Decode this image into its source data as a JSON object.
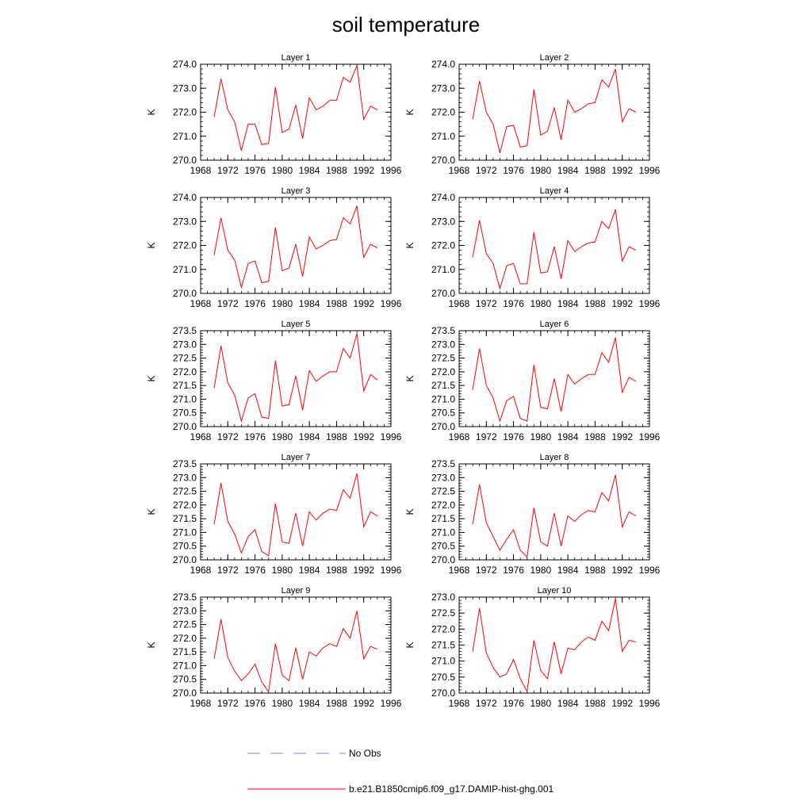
{
  "title": "soil temperature",
  "colors": {
    "model": "#ff0000",
    "obs": "#8080ff",
    "axis": "#000000"
  },
  "legend": {
    "placement": "bottom",
    "entries": [
      {
        "label": "No Obs",
        "style": "dashed",
        "color": "#8080ff"
      },
      {
        "label": "b.e21.B1850cmip6.f09_g17.DAMIP-hist-ghg.001",
        "style": "solid",
        "color": "#ff0000"
      }
    ]
  },
  "chart_data": [
    {
      "type": "line",
      "title": "Layer 1",
      "ylabel": "K",
      "xlabel": "",
      "xlim": [
        1968,
        1996
      ],
      "xticks": [
        "1968",
        "1972",
        "1976",
        "1980",
        "1984",
        "1988",
        "1992",
        "1996"
      ],
      "ylim": [
        270.0,
        274.0
      ],
      "yticks": [
        "270.0",
        "271.0",
        "272.0",
        "273.0",
        "274.0"
      ],
      "x": [
        1970,
        1971,
        1972,
        1973,
        1974,
        1975,
        1976,
        1977,
        1978,
        1979,
        1980,
        1981,
        1982,
        1983,
        1984,
        1985,
        1986,
        1987,
        1988,
        1989,
        1990,
        1991,
        1992,
        1993,
        1994
      ],
      "series": [
        {
          "values": [
            271.8,
            273.4,
            272.1,
            271.6,
            270.4,
            271.5,
            271.5,
            270.65,
            270.7,
            273.05,
            271.15,
            271.3,
            272.3,
            270.9,
            272.6,
            272.1,
            272.25,
            272.5,
            272.5,
            273.45,
            273.25,
            273.95,
            271.7,
            272.25,
            272.1
          ]
        }
      ]
    },
    {
      "type": "line",
      "title": "Layer 2",
      "ylabel": "K",
      "xlabel": "",
      "xlim": [
        1968,
        1996
      ],
      "xticks": [
        "1968",
        "1972",
        "1976",
        "1980",
        "1984",
        "1988",
        "1992",
        "1996"
      ],
      "ylim": [
        270.0,
        274.0
      ],
      "yticks": [
        "270.0",
        "271.0",
        "272.0",
        "273.0",
        "274.0"
      ],
      "x": [
        1970,
        1971,
        1972,
        1973,
        1974,
        1975,
        1976,
        1977,
        1978,
        1979,
        1980,
        1981,
        1982,
        1983,
        1984,
        1985,
        1986,
        1987,
        1988,
        1989,
        1990,
        1991,
        1992,
        1993,
        1994
      ],
      "series": [
        {
          "values": [
            271.7,
            273.3,
            272.0,
            271.5,
            270.3,
            271.4,
            271.45,
            270.55,
            270.6,
            272.95,
            271.05,
            271.2,
            272.2,
            270.85,
            272.5,
            272.0,
            272.15,
            272.35,
            272.4,
            273.35,
            273.05,
            273.8,
            271.6,
            272.15,
            272.0
          ]
        }
      ]
    },
    {
      "type": "line",
      "title": "Layer 3",
      "ylabel": "K",
      "xlabel": "",
      "xlim": [
        1968,
        1996
      ],
      "xticks": [
        "1968",
        "1972",
        "1976",
        "1980",
        "1984",
        "1988",
        "1992",
        "1996"
      ],
      "ylim": [
        270.0,
        274.0
      ],
      "yticks": [
        "270.0",
        "271.0",
        "272.0",
        "273.0",
        "274.0"
      ],
      "x": [
        1970,
        1971,
        1972,
        1973,
        1974,
        1975,
        1976,
        1977,
        1978,
        1979,
        1980,
        1981,
        1982,
        1983,
        1984,
        1985,
        1986,
        1987,
        1988,
        1989,
        1990,
        1991,
        1992,
        1993,
        1994
      ],
      "series": [
        {
          "values": [
            271.6,
            273.15,
            271.8,
            271.4,
            270.25,
            271.25,
            271.35,
            270.45,
            270.5,
            272.75,
            270.95,
            271.05,
            272.05,
            270.7,
            272.35,
            271.85,
            272.0,
            272.2,
            272.25,
            273.15,
            272.9,
            273.65,
            271.5,
            272.05,
            271.9
          ]
        }
      ]
    },
    {
      "type": "line",
      "title": "Layer 4",
      "ylabel": "K",
      "xlabel": "",
      "xlim": [
        1968,
        1996
      ],
      "xticks": [
        "1968",
        "1972",
        "1976",
        "1980",
        "1984",
        "1988",
        "1992",
        "1996"
      ],
      "ylim": [
        270.0,
        274.0
      ],
      "yticks": [
        "270.0",
        "271.0",
        "272.0",
        "273.0",
        "274.0"
      ],
      "x": [
        1970,
        1971,
        1972,
        1973,
        1974,
        1975,
        1976,
        1977,
        1978,
        1979,
        1980,
        1981,
        1982,
        1983,
        1984,
        1985,
        1986,
        1987,
        1988,
        1989,
        1990,
        1991,
        1992,
        1993,
        1994
      ],
      "series": [
        {
          "values": [
            271.5,
            273.05,
            271.65,
            271.25,
            270.2,
            271.15,
            271.25,
            270.4,
            270.4,
            272.55,
            270.85,
            270.9,
            271.95,
            270.6,
            272.2,
            271.75,
            271.95,
            272.1,
            272.15,
            273.0,
            272.7,
            273.5,
            271.35,
            271.95,
            271.8
          ]
        }
      ]
    },
    {
      "type": "line",
      "title": "Layer 5",
      "ylabel": "K",
      "xlabel": "",
      "xlim": [
        1968,
        1996
      ],
      "xticks": [
        "1968",
        "1972",
        "1976",
        "1980",
        "1984",
        "1988",
        "1992",
        "1996"
      ],
      "ylim": [
        270.0,
        273.5
      ],
      "yticks": [
        "270.0",
        "270.5",
        "271.0",
        "271.5",
        "272.0",
        "272.5",
        "273.0",
        "273.5"
      ],
      "x": [
        1970,
        1971,
        1972,
        1973,
        1974,
        1975,
        1976,
        1977,
        1978,
        1979,
        1980,
        1981,
        1982,
        1983,
        1984,
        1985,
        1986,
        1987,
        1988,
        1989,
        1990,
        1991,
        1992,
        1993,
        1994
      ],
      "series": [
        {
          "values": [
            271.4,
            272.95,
            271.6,
            271.15,
            270.2,
            271.05,
            271.2,
            270.35,
            270.3,
            272.4,
            270.75,
            270.8,
            271.85,
            270.6,
            272.05,
            271.65,
            271.85,
            272.0,
            272.0,
            272.85,
            272.5,
            273.4,
            271.3,
            271.9,
            271.7
          ]
        }
      ]
    },
    {
      "type": "line",
      "title": "Layer 6",
      "ylabel": "K",
      "xlabel": "",
      "xlim": [
        1968,
        1996
      ],
      "xticks": [
        "1968",
        "1972",
        "1976",
        "1980",
        "1984",
        "1988",
        "1992",
        "1996"
      ],
      "ylim": [
        270.0,
        273.5
      ],
      "yticks": [
        "270.0",
        "270.5",
        "271.0",
        "271.5",
        "272.0",
        "272.5",
        "273.0",
        "273.5"
      ],
      "x": [
        1970,
        1971,
        1972,
        1973,
        1974,
        1975,
        1976,
        1977,
        1978,
        1979,
        1980,
        1981,
        1982,
        1983,
        1984,
        1985,
        1986,
        1987,
        1988,
        1989,
        1990,
        1991,
        1992,
        1993,
        1994
      ],
      "series": [
        {
          "values": [
            271.35,
            272.85,
            271.5,
            271.05,
            270.2,
            270.95,
            271.1,
            270.3,
            270.2,
            272.25,
            270.7,
            270.65,
            271.75,
            270.55,
            271.9,
            271.55,
            271.75,
            271.9,
            271.9,
            272.7,
            272.35,
            273.25,
            271.25,
            271.8,
            271.65
          ]
        }
      ]
    },
    {
      "type": "line",
      "title": "Layer 7",
      "ylabel": "K",
      "xlabel": "",
      "xlim": [
        1968,
        1996
      ],
      "xticks": [
        "1968",
        "1972",
        "1976",
        "1980",
        "1984",
        "1988",
        "1992",
        "1996"
      ],
      "ylim": [
        270.0,
        273.5
      ],
      "yticks": [
        "270.0",
        "270.5",
        "271.0",
        "271.5",
        "272.0",
        "272.5",
        "273.0",
        "273.5"
      ],
      "x": [
        1970,
        1971,
        1972,
        1973,
        1974,
        1975,
        1976,
        1977,
        1978,
        1979,
        1980,
        1981,
        1982,
        1983,
        1984,
        1985,
        1986,
        1987,
        1988,
        1989,
        1990,
        1991,
        1992,
        1993,
        1994
      ],
      "series": [
        {
          "values": [
            271.3,
            272.8,
            271.4,
            270.95,
            270.25,
            270.85,
            271.1,
            270.3,
            270.15,
            272.05,
            270.65,
            270.6,
            271.7,
            270.5,
            271.75,
            271.45,
            271.7,
            271.85,
            271.8,
            272.55,
            272.25,
            273.15,
            271.2,
            271.75,
            271.6
          ]
        }
      ]
    },
    {
      "type": "line",
      "title": "Layer 8",
      "ylabel": "K",
      "xlabel": "",
      "xlim": [
        1968,
        1996
      ],
      "xticks": [
        "1968",
        "1972",
        "1976",
        "1980",
        "1984",
        "1988",
        "1992",
        "1996"
      ],
      "ylim": [
        270.0,
        273.5
      ],
      "yticks": [
        "270.0",
        "270.5",
        "271.0",
        "271.5",
        "272.0",
        "272.5",
        "273.0",
        "273.5"
      ],
      "x": [
        1970,
        1971,
        1972,
        1973,
        1974,
        1975,
        1976,
        1977,
        1978,
        1979,
        1980,
        1981,
        1982,
        1983,
        1984,
        1985,
        1986,
        1987,
        1988,
        1989,
        1990,
        1991,
        1992,
        1993,
        1994
      ],
      "series": [
        {
          "values": [
            271.3,
            272.75,
            271.35,
            270.85,
            270.35,
            270.75,
            271.1,
            270.35,
            270.1,
            271.9,
            270.65,
            270.5,
            271.7,
            270.5,
            271.6,
            271.4,
            271.65,
            271.8,
            271.75,
            272.45,
            272.15,
            273.1,
            271.2,
            271.75,
            271.6
          ]
        }
      ]
    },
    {
      "type": "line",
      "title": "Layer 9",
      "ylabel": "K",
      "xlabel": "",
      "xlim": [
        1968,
        1996
      ],
      "xticks": [
        "1968",
        "1972",
        "1976",
        "1980",
        "1984",
        "1988",
        "1992",
        "1996"
      ],
      "ylim": [
        270.0,
        273.5
      ],
      "yticks": [
        "270.0",
        "270.5",
        "271.0",
        "271.5",
        "272.0",
        "272.5",
        "273.0",
        "273.5"
      ],
      "x": [
        1970,
        1971,
        1972,
        1973,
        1974,
        1975,
        1976,
        1977,
        1978,
        1979,
        1980,
        1981,
        1982,
        1983,
        1984,
        1985,
        1986,
        1987,
        1988,
        1989,
        1990,
        1991,
        1992,
        1993,
        1994
      ],
      "series": [
        {
          "values": [
            271.25,
            272.7,
            271.3,
            270.8,
            270.45,
            270.7,
            271.05,
            270.4,
            270.05,
            271.8,
            270.65,
            270.45,
            271.65,
            270.5,
            271.5,
            271.35,
            271.65,
            271.8,
            271.7,
            272.35,
            272.0,
            273.0,
            271.25,
            271.7,
            271.6
          ]
        }
      ]
    },
    {
      "type": "line",
      "title": "Layer 10",
      "ylabel": "K",
      "xlabel": "",
      "xlim": [
        1968,
        1996
      ],
      "xticks": [
        "1968",
        "1972",
        "1976",
        "1980",
        "1984",
        "1988",
        "1992",
        "1996"
      ],
      "ylim": [
        270.0,
        273.0
      ],
      "yticks": [
        "270.0",
        "270.5",
        "271.0",
        "271.5",
        "272.0",
        "272.5",
        "273.0"
      ],
      "x": [
        1970,
        1971,
        1972,
        1973,
        1974,
        1975,
        1976,
        1977,
        1978,
        1979,
        1980,
        1981,
        1982,
        1983,
        1984,
        1985,
        1986,
        1987,
        1988,
        1989,
        1990,
        1991,
        1992,
        1993,
        1994
      ],
      "series": [
        {
          "values": [
            271.3,
            272.65,
            271.25,
            270.8,
            270.5,
            270.6,
            271.05,
            270.45,
            270.05,
            271.65,
            270.7,
            270.45,
            271.6,
            270.6,
            271.4,
            271.35,
            271.6,
            271.75,
            271.65,
            272.25,
            271.95,
            272.95,
            271.3,
            271.65,
            271.6
          ]
        }
      ]
    }
  ]
}
